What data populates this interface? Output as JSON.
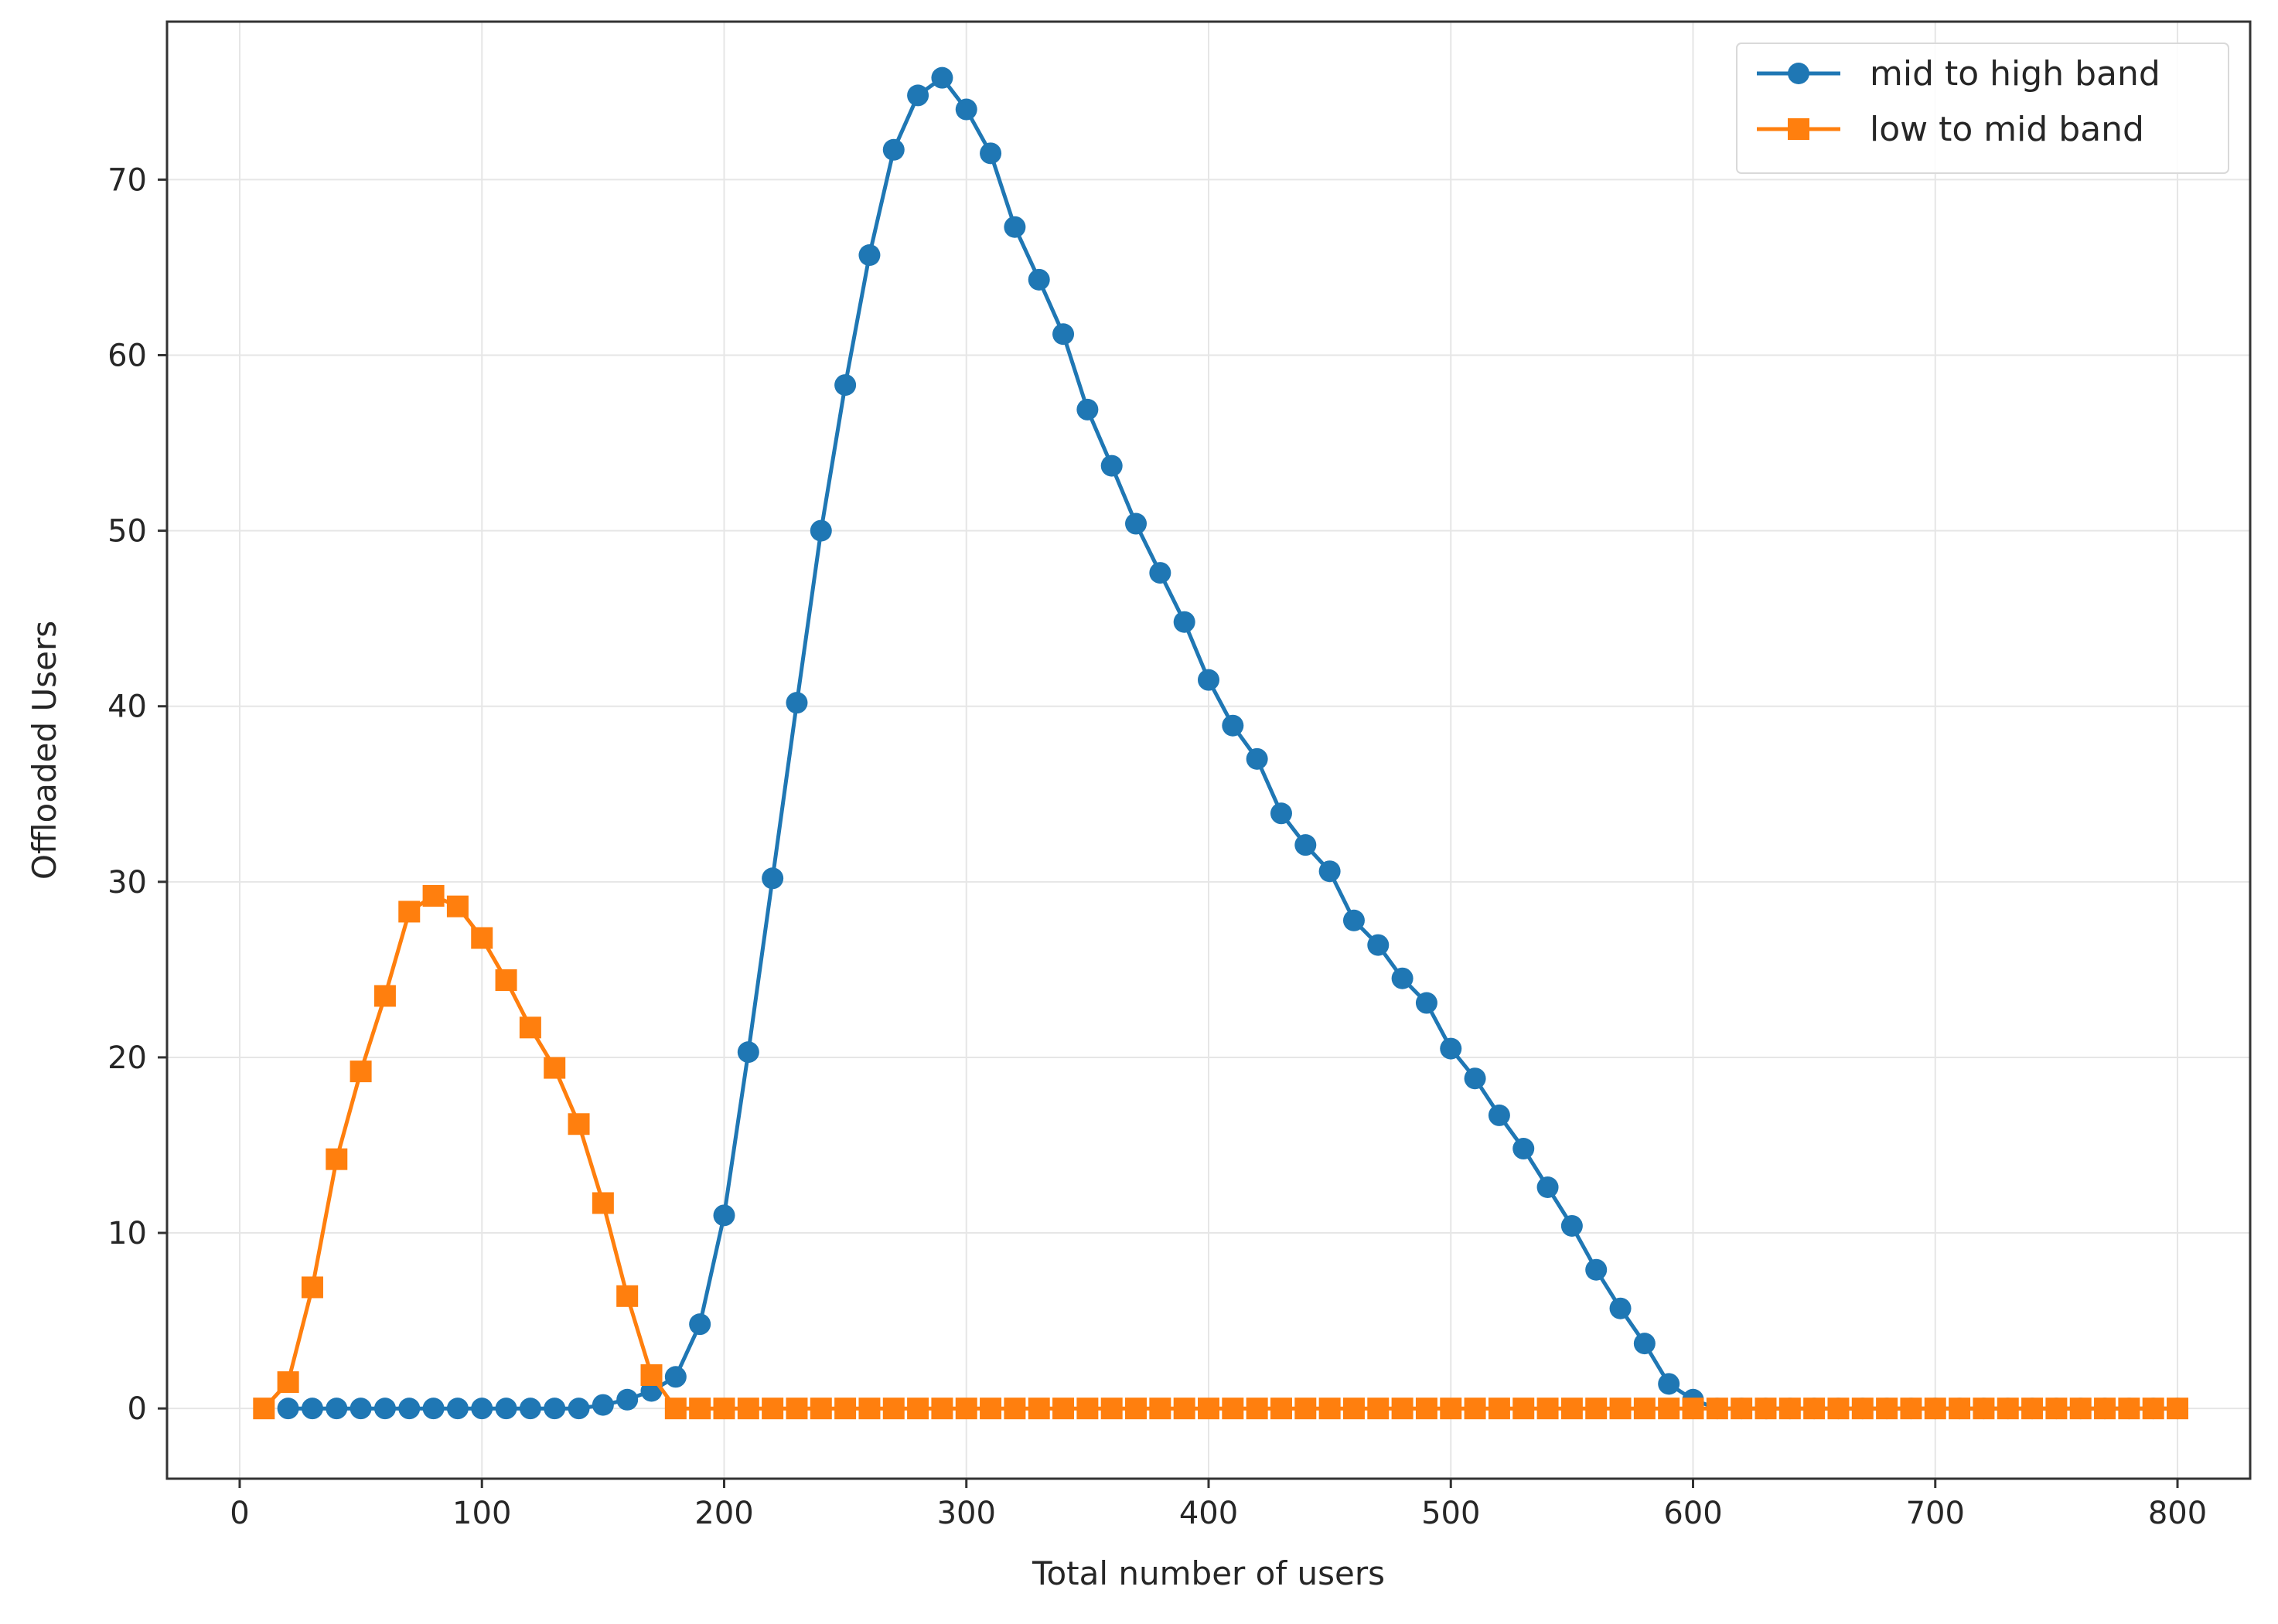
{
  "chart_data": {
    "type": "line",
    "xlabel": "Total number of users",
    "ylabel": "Offloaded Users",
    "xlim": [
      -30,
      830
    ],
    "ylim": [
      -4,
      79
    ],
    "xticks": [
      0,
      100,
      200,
      300,
      400,
      500,
      600,
      700,
      800
    ],
    "yticks": [
      0,
      10,
      20,
      30,
      40,
      50,
      60,
      70
    ],
    "grid": true,
    "legend_position": "top-right",
    "series": [
      {
        "name": "mid to high band",
        "color": "#1f77b4",
        "marker": "circle",
        "points": [
          [
            20,
            0
          ],
          [
            30,
            0
          ],
          [
            40,
            0
          ],
          [
            50,
            0
          ],
          [
            60,
            0
          ],
          [
            70,
            0
          ],
          [
            80,
            0
          ],
          [
            90,
            0
          ],
          [
            100,
            0
          ],
          [
            110,
            0
          ],
          [
            120,
            0
          ],
          [
            130,
            0
          ],
          [
            140,
            0
          ],
          [
            150,
            0.2
          ],
          [
            160,
            0.5
          ],
          [
            170,
            1
          ],
          [
            180,
            1.8
          ],
          [
            190,
            4.8
          ],
          [
            200,
            11
          ],
          [
            210,
            20.3
          ],
          [
            220,
            30.2
          ],
          [
            230,
            40.2
          ],
          [
            240,
            50
          ],
          [
            250,
            58.3
          ],
          [
            260,
            65.7
          ],
          [
            270,
            71.7
          ],
          [
            280,
            74.8
          ],
          [
            290,
            75.8
          ],
          [
            300,
            74
          ],
          [
            310,
            71.5
          ],
          [
            320,
            67.3
          ],
          [
            330,
            64.3
          ],
          [
            340,
            61.2
          ],
          [
            350,
            56.9
          ],
          [
            360,
            53.7
          ],
          [
            370,
            50.4
          ],
          [
            380,
            47.6
          ],
          [
            390,
            44.8
          ],
          [
            400,
            41.5
          ],
          [
            410,
            38.9
          ],
          [
            420,
            37
          ],
          [
            430,
            33.9
          ],
          [
            440,
            32.1
          ],
          [
            450,
            30.6
          ],
          [
            460,
            27.8
          ],
          [
            470,
            26.4
          ],
          [
            480,
            24.5
          ],
          [
            490,
            23.1
          ],
          [
            500,
            20.5
          ],
          [
            510,
            18.8
          ],
          [
            520,
            16.7
          ],
          [
            530,
            14.8
          ],
          [
            540,
            12.6
          ],
          [
            550,
            10.4
          ],
          [
            560,
            7.9
          ],
          [
            570,
            5.7
          ],
          [
            580,
            3.7
          ],
          [
            590,
            1.4
          ],
          [
            600,
            0.5
          ],
          [
            610,
            0
          ],
          [
            620,
            0
          ],
          [
            630,
            0
          ],
          [
            640,
            0
          ],
          [
            650,
            0
          ],
          [
            660,
            0
          ],
          [
            670,
            0
          ],
          [
            680,
            0
          ],
          [
            690,
            0
          ],
          [
            700,
            0
          ],
          [
            710,
            0
          ],
          [
            720,
            0
          ],
          [
            730,
            0
          ],
          [
            740,
            0
          ],
          [
            750,
            0
          ],
          [
            760,
            0
          ],
          [
            770,
            0
          ],
          [
            780,
            0
          ],
          [
            790,
            0
          ],
          [
            800,
            0
          ]
        ]
      },
      {
        "name": "low to mid band",
        "color": "#ff7f0e",
        "marker": "square",
        "points": [
          [
            10,
            0
          ],
          [
            20,
            1.5
          ],
          [
            30,
            6.9
          ],
          [
            40,
            14.2
          ],
          [
            50,
            19.2
          ],
          [
            60,
            23.5
          ],
          [
            70,
            28.3
          ],
          [
            80,
            29.2
          ],
          [
            90,
            28.6
          ],
          [
            100,
            26.8
          ],
          [
            110,
            24.4
          ],
          [
            120,
            21.7
          ],
          [
            130,
            19.4
          ],
          [
            140,
            16.2
          ],
          [
            150,
            11.7
          ],
          [
            160,
            6.4
          ],
          [
            170,
            1.9
          ],
          [
            180,
            0
          ],
          [
            190,
            0
          ],
          [
            200,
            0
          ],
          [
            210,
            0
          ],
          [
            220,
            0
          ],
          [
            230,
            0
          ],
          [
            240,
            0
          ],
          [
            250,
            0
          ],
          [
            260,
            0
          ],
          [
            270,
            0
          ],
          [
            280,
            0
          ],
          [
            290,
            0
          ],
          [
            300,
            0
          ],
          [
            310,
            0
          ],
          [
            320,
            0
          ],
          [
            330,
            0
          ],
          [
            340,
            0
          ],
          [
            350,
            0
          ],
          [
            360,
            0
          ],
          [
            370,
            0
          ],
          [
            380,
            0
          ],
          [
            390,
            0
          ],
          [
            400,
            0
          ],
          [
            410,
            0
          ],
          [
            420,
            0
          ],
          [
            430,
            0
          ],
          [
            440,
            0
          ],
          [
            450,
            0
          ],
          [
            460,
            0
          ],
          [
            470,
            0
          ],
          [
            480,
            0
          ],
          [
            490,
            0
          ],
          [
            500,
            0
          ],
          [
            510,
            0
          ],
          [
            520,
            0
          ],
          [
            530,
            0
          ],
          [
            540,
            0
          ],
          [
            550,
            0
          ],
          [
            560,
            0
          ],
          [
            570,
            0
          ],
          [
            580,
            0
          ],
          [
            590,
            0
          ],
          [
            600,
            0
          ],
          [
            610,
            0
          ],
          [
            620,
            0
          ],
          [
            630,
            0
          ],
          [
            640,
            0
          ],
          [
            650,
            0
          ],
          [
            660,
            0
          ],
          [
            670,
            0
          ],
          [
            680,
            0
          ],
          [
            690,
            0
          ],
          [
            700,
            0
          ],
          [
            710,
            0
          ],
          [
            720,
            0
          ],
          [
            730,
            0
          ],
          [
            740,
            0
          ],
          [
            750,
            0
          ],
          [
            760,
            0
          ],
          [
            770,
            0
          ],
          [
            780,
            0
          ],
          [
            790,
            0
          ],
          [
            800,
            0
          ]
        ]
      }
    ]
  }
}
